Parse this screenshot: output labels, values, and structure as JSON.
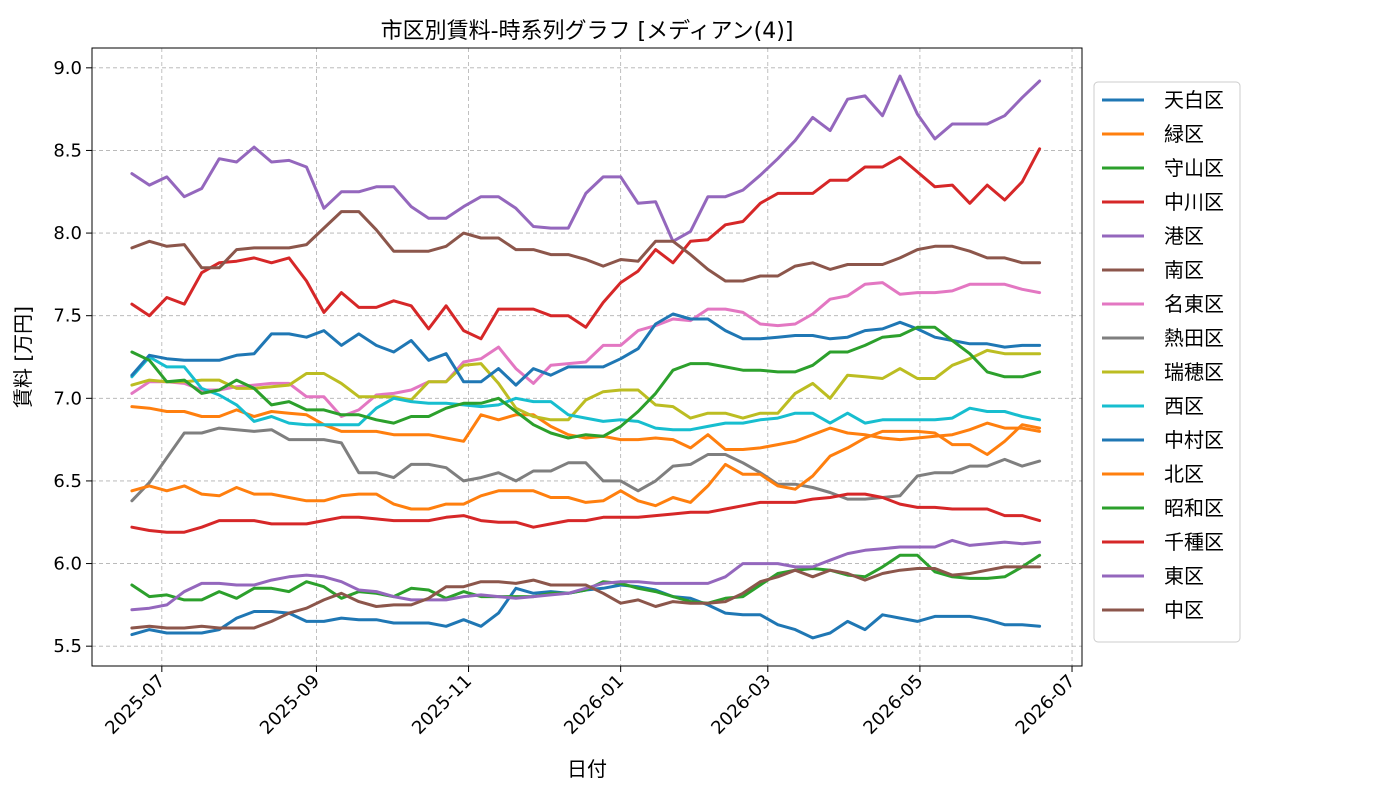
{
  "chart_data": {
    "type": "line",
    "title": "市区別賃料-時系列グラフ [メディアン(4)]",
    "xlabel": "日付",
    "ylabel": "賃料 [万円]",
    "xlim": [
      "2025-06-03",
      "2026-07-05"
    ],
    "ylim": [
      5.38,
      9.12
    ],
    "yticks": [
      "5.5",
      "6.0",
      "6.5",
      "7.0",
      "7.5",
      "8.0",
      "8.5",
      "9.0"
    ],
    "xticks": [
      "2025-07",
      "2025-09",
      "2025-11",
      "2026-01",
      "2026-03",
      "2026-05",
      "2026-07"
    ],
    "xtick_dates": [
      "2025-07-01",
      "2025-09-01",
      "2025-11-01",
      "2026-01-01",
      "2026-03-01",
      "2026-05-01",
      "2026-07-01"
    ],
    "grid": true,
    "legend_position": "right outside",
    "x": [
      "2025-06-19",
      "2025-06-26",
      "2025-07-03",
      "2025-07-10",
      "2025-07-17",
      "2025-07-24",
      "2025-07-31",
      "2025-08-07",
      "2025-08-14",
      "2025-08-21",
      "2025-08-28",
      "2025-09-04",
      "2025-09-11",
      "2025-09-18",
      "2025-09-25",
      "2025-10-02",
      "2025-10-09",
      "2025-10-16",
      "2025-10-23",
      "2025-10-30",
      "2025-11-06",
      "2025-11-13",
      "2025-11-20",
      "2025-11-27",
      "2025-12-04",
      "2025-12-11",
      "2025-12-18",
      "2025-12-25",
      "2026-01-01",
      "2026-01-08",
      "2026-01-15",
      "2026-01-22",
      "2026-01-29",
      "2026-02-05",
      "2026-02-12",
      "2026-02-19",
      "2026-02-26",
      "2026-03-05",
      "2026-03-12",
      "2026-03-19",
      "2026-03-26",
      "2026-04-02",
      "2026-04-09",
      "2026-04-16",
      "2026-04-23",
      "2026-04-30",
      "2026-05-07",
      "2026-05-14",
      "2026-05-21",
      "2026-05-28",
      "2026-06-04",
      "2026-06-11",
      "2026-06-18"
    ],
    "series": [
      {
        "name": "天白区",
        "color": "#1f77b4",
        "values": [
          5.57,
          5.6,
          5.58,
          5.58,
          5.58,
          5.6,
          5.67,
          5.71,
          5.71,
          5.7,
          5.65,
          5.65,
          5.67,
          5.66,
          5.66,
          5.64,
          5.64,
          5.64,
          5.62,
          5.66,
          5.62,
          5.7,
          5.85,
          5.82,
          5.83,
          5.82,
          5.84,
          5.85,
          5.87,
          5.86,
          5.84,
          5.8,
          5.79,
          5.75,
          5.7,
          5.69,
          5.69,
          5.63,
          5.6,
          5.55,
          5.58,
          5.65,
          5.6,
          5.69,
          5.67,
          5.65,
          5.68,
          5.68,
          5.68,
          5.66,
          5.63,
          5.63,
          5.62
        ]
      },
      {
        "name": "緑区",
        "color": "#ff7f0e",
        "values": [
          6.95,
          6.94,
          6.92,
          6.92,
          6.89,
          6.89,
          6.93,
          6.89,
          6.92,
          6.91,
          6.9,
          6.84,
          6.8,
          6.8,
          6.8,
          6.78,
          6.78,
          6.78,
          6.76,
          6.74,
          6.9,
          6.87,
          6.9,
          6.9,
          6.83,
          6.78,
          6.76,
          6.77,
          6.75,
          6.75,
          6.76,
          6.75,
          6.7,
          6.78,
          6.69,
          6.69,
          6.7,
          6.72,
          6.74,
          6.78,
          6.82,
          6.79,
          6.78,
          6.76,
          6.75,
          6.76,
          6.77,
          6.78,
          6.81,
          6.85,
          6.82,
          6.82,
          6.8
        ]
      },
      {
        "name": "守山区",
        "color": "#2ca02c",
        "values": [
          5.87,
          5.8,
          5.81,
          5.78,
          5.78,
          5.83,
          5.79,
          5.85,
          5.85,
          5.83,
          5.89,
          5.86,
          5.79,
          5.83,
          5.82,
          5.8,
          5.85,
          5.84,
          5.79,
          5.83,
          5.8,
          5.8,
          5.8,
          5.8,
          5.82,
          5.82,
          5.84,
          5.89,
          5.88,
          5.85,
          5.83,
          5.8,
          5.77,
          5.76,
          5.79,
          5.8,
          5.87,
          5.94,
          5.96,
          5.97,
          5.96,
          5.93,
          5.92,
          5.98,
          6.05,
          6.05,
          5.95,
          5.92,
          5.91,
          5.91,
          5.92,
          5.98,
          6.05
        ]
      },
      {
        "name": "中川区",
        "color": "#d62728",
        "values": [
          7.57,
          7.5,
          7.61,
          7.57,
          7.76,
          7.82,
          7.83,
          7.85,
          7.82,
          7.85,
          7.71,
          7.52,
          7.64,
          7.55,
          7.55,
          7.59,
          7.56,
          7.42,
          7.56,
          7.41,
          7.36,
          7.54,
          7.54,
          7.54,
          7.5,
          7.5,
          7.43,
          7.58,
          7.7,
          7.77,
          7.9,
          7.82,
          7.95,
          7.96,
          8.05,
          8.07,
          8.18,
          8.24,
          8.24,
          8.24,
          8.32,
          8.32,
          8.4,
          8.4,
          8.46,
          8.37,
          8.28,
          8.29,
          8.18,
          8.29,
          8.2,
          8.31,
          8.51
        ]
      },
      {
        "name": "港区",
        "color": "#9467bd",
        "values": [
          8.36,
          8.29,
          8.34,
          8.22,
          8.27,
          8.45,
          8.43,
          8.52,
          8.43,
          8.44,
          8.4,
          8.15,
          8.25,
          8.25,
          8.28,
          8.28,
          8.16,
          8.09,
          8.09,
          8.16,
          8.22,
          8.22,
          8.15,
          8.04,
          8.03,
          8.03,
          8.24,
          8.34,
          8.34,
          8.18,
          8.19,
          7.95,
          8.01,
          8.22,
          8.22,
          8.26,
          8.35,
          8.45,
          8.56,
          8.7,
          8.62,
          8.81,
          8.83,
          8.71,
          8.95,
          8.72,
          8.57,
          8.66,
          8.66,
          8.66,
          8.71,
          8.82,
          8.92
        ]
      },
      {
        "name": "南区",
        "color": "#8c564b",
        "values": [
          7.91,
          7.95,
          7.92,
          7.93,
          7.79,
          7.79,
          7.9,
          7.91,
          7.91,
          7.91,
          7.93,
          8.03,
          8.13,
          8.13,
          8.02,
          7.89,
          7.89,
          7.89,
          7.92,
          8.0,
          7.97,
          7.97,
          7.9,
          7.9,
          7.87,
          7.87,
          7.84,
          7.8,
          7.84,
          7.83,
          7.95,
          7.95,
          7.87,
          7.78,
          7.71,
          7.71,
          7.74,
          7.74,
          7.8,
          7.82,
          7.78,
          7.81,
          7.81,
          7.81,
          7.85,
          7.9,
          7.92,
          7.92,
          7.89,
          7.85,
          7.85,
          7.82,
          7.82
        ]
      },
      {
        "name": "名東区",
        "color": "#e377c2",
        "values": [
          7.03,
          7.1,
          7.1,
          7.09,
          7.05,
          7.05,
          7.07,
          7.08,
          7.09,
          7.09,
          7.01,
          7.01,
          6.89,
          6.93,
          7.02,
          7.03,
          7.05,
          7.1,
          7.1,
          7.22,
          7.24,
          7.31,
          7.18,
          7.09,
          7.2,
          7.21,
          7.22,
          7.32,
          7.32,
          7.41,
          7.44,
          7.48,
          7.47,
          7.54,
          7.54,
          7.52,
          7.45,
          7.44,
          7.45,
          7.51,
          7.6,
          7.62,
          7.69,
          7.7,
          7.63,
          7.64,
          7.64,
          7.65,
          7.69,
          7.69,
          7.69,
          7.66,
          7.64
        ]
      },
      {
        "name": "熱田区",
        "color": "#7f7f7f",
        "values": [
          6.38,
          6.49,
          6.64,
          6.79,
          6.79,
          6.82,
          6.81,
          6.8,
          6.81,
          6.75,
          6.75,
          6.75,
          6.73,
          6.55,
          6.55,
          6.52,
          6.6,
          6.6,
          6.58,
          6.5,
          6.52,
          6.55,
          6.5,
          6.56,
          6.56,
          6.61,
          6.61,
          6.5,
          6.5,
          6.44,
          6.5,
          6.59,
          6.6,
          6.66,
          6.66,
          6.61,
          6.55,
          6.48,
          6.48,
          6.46,
          6.43,
          6.39,
          6.39,
          6.4,
          6.41,
          6.53,
          6.55,
          6.55,
          6.59,
          6.59,
          6.63,
          6.59,
          6.62
        ]
      },
      {
        "name": "瑞穂区",
        "color": "#bcbd22",
        "values": [
          7.08,
          7.11,
          7.1,
          7.1,
          7.11,
          7.11,
          7.06,
          7.06,
          7.07,
          7.08,
          7.15,
          7.15,
          7.09,
          7.01,
          7.01,
          7.01,
          6.99,
          7.1,
          7.1,
          7.2,
          7.21,
          7.09,
          6.94,
          6.89,
          6.87,
          6.87,
          6.99,
          7.04,
          7.05,
          7.05,
          6.96,
          6.95,
          6.88,
          6.91,
          6.91,
          6.88,
          6.91,
          6.91,
          7.03,
          7.09,
          7.0,
          7.14,
          7.13,
          7.12,
          7.18,
          7.12,
          7.12,
          7.2,
          7.24,
          7.29,
          7.27,
          7.27,
          7.27
        ]
      },
      {
        "name": "西区",
        "color": "#17becf",
        "values": [
          7.13,
          7.25,
          7.19,
          7.19,
          7.06,
          7.02,
          6.96,
          6.86,
          6.89,
          6.85,
          6.84,
          6.84,
          6.84,
          6.84,
          6.94,
          7.0,
          6.98,
          6.97,
          6.97,
          6.96,
          6.95,
          6.96,
          7.0,
          6.98,
          6.98,
          6.9,
          6.88,
          6.86,
          6.87,
          6.86,
          6.82,
          6.81,
          6.81,
          6.83,
          6.85,
          6.85,
          6.87,
          6.88,
          6.91,
          6.91,
          6.85,
          6.91,
          6.85,
          6.87,
          6.87,
          6.87,
          6.87,
          6.88,
          6.94,
          6.92,
          6.92,
          6.89,
          6.87
        ]
      },
      {
        "name": "中村区",
        "color": "#1f77b4",
        "values": [
          7.14,
          7.26,
          7.24,
          7.23,
          7.23,
          7.23,
          7.26,
          7.27,
          7.39,
          7.39,
          7.37,
          7.41,
          7.32,
          7.39,
          7.32,
          7.28,
          7.35,
          7.23,
          7.27,
          7.1,
          7.1,
          7.18,
          7.08,
          7.18,
          7.14,
          7.19,
          7.19,
          7.19,
          7.24,
          7.3,
          7.45,
          7.51,
          7.48,
          7.48,
          7.41,
          7.36,
          7.36,
          7.37,
          7.38,
          7.38,
          7.36,
          7.37,
          7.41,
          7.42,
          7.46,
          7.42,
          7.37,
          7.35,
          7.33,
          7.33,
          7.31,
          7.32,
          7.32
        ]
      },
      {
        "name": "北区",
        "color": "#ff7f0e",
        "values": [
          6.44,
          6.47,
          6.44,
          6.47,
          6.42,
          6.41,
          6.46,
          6.42,
          6.42,
          6.4,
          6.38,
          6.38,
          6.41,
          6.42,
          6.42,
          6.36,
          6.33,
          6.33,
          6.36,
          6.36,
          6.41,
          6.44,
          6.44,
          6.44,
          6.4,
          6.4,
          6.37,
          6.38,
          6.44,
          6.38,
          6.35,
          6.4,
          6.37,
          6.47,
          6.6,
          6.54,
          6.54,
          6.47,
          6.45,
          6.53,
          6.65,
          6.7,
          6.76,
          6.8,
          6.8,
          6.8,
          6.79,
          6.72,
          6.72,
          6.66,
          6.74,
          6.84,
          6.82
        ]
      },
      {
        "name": "昭和区",
        "color": "#2ca02c",
        "values": [
          7.28,
          7.23,
          7.1,
          7.11,
          7.03,
          7.05,
          7.11,
          7.06,
          6.96,
          6.98,
          6.93,
          6.93,
          6.9,
          6.9,
          6.87,
          6.85,
          6.89,
          6.89,
          6.94,
          6.97,
          6.97,
          7.0,
          6.92,
          6.84,
          6.79,
          6.76,
          6.78,
          6.77,
          6.83,
          6.92,
          7.03,
          7.17,
          7.21,
          7.21,
          7.19,
          7.17,
          7.17,
          7.16,
          7.16,
          7.2,
          7.28,
          7.28,
          7.32,
          7.37,
          7.38,
          7.43,
          7.43,
          7.35,
          7.27,
          7.16,
          7.13,
          7.13,
          7.16
        ]
      },
      {
        "name": "千種区",
        "color": "#d62728",
        "values": [
          6.22,
          6.2,
          6.19,
          6.19,
          6.22,
          6.26,
          6.26,
          6.26,
          6.24,
          6.24,
          6.24,
          6.26,
          6.28,
          6.28,
          6.27,
          6.26,
          6.26,
          6.26,
          6.28,
          6.29,
          6.26,
          6.25,
          6.25,
          6.22,
          6.24,
          6.26,
          6.26,
          6.28,
          6.28,
          6.28,
          6.29,
          6.3,
          6.31,
          6.31,
          6.33,
          6.35,
          6.37,
          6.37,
          6.37,
          6.39,
          6.4,
          6.42,
          6.42,
          6.4,
          6.36,
          6.34,
          6.34,
          6.33,
          6.33,
          6.33,
          6.29,
          6.29,
          6.26
        ]
      },
      {
        "name": "東区",
        "color": "#9467bd",
        "values": [
          5.72,
          5.73,
          5.75,
          5.83,
          5.88,
          5.88,
          5.87,
          5.87,
          5.9,
          5.92,
          5.93,
          5.92,
          5.89,
          5.84,
          5.83,
          5.8,
          5.78,
          5.78,
          5.78,
          5.8,
          5.81,
          5.8,
          5.79,
          5.8,
          5.81,
          5.82,
          5.85,
          5.88,
          5.89,
          5.89,
          5.88,
          5.88,
          5.88,
          5.88,
          5.92,
          6.0,
          6.0,
          6.0,
          5.98,
          5.98,
          6.02,
          6.06,
          6.08,
          6.09,
          6.1,
          6.1,
          6.1,
          6.14,
          6.11,
          6.12,
          6.13,
          6.12,
          6.13
        ]
      },
      {
        "name": "中区",
        "color": "#8c564b",
        "values": [
          5.61,
          5.62,
          5.61,
          5.61,
          5.62,
          5.61,
          5.61,
          5.61,
          5.65,
          5.7,
          5.73,
          5.78,
          5.82,
          5.77,
          5.74,
          5.75,
          5.75,
          5.79,
          5.86,
          5.86,
          5.89,
          5.89,
          5.88,
          5.9,
          5.87,
          5.87,
          5.87,
          5.82,
          5.76,
          5.78,
          5.74,
          5.77,
          5.76,
          5.76,
          5.77,
          5.82,
          5.89,
          5.92,
          5.96,
          5.92,
          5.96,
          5.94,
          5.9,
          5.94,
          5.96,
          5.97,
          5.97,
          5.93,
          5.94,
          5.96,
          5.98,
          5.98,
          5.98
        ]
      }
    ]
  }
}
